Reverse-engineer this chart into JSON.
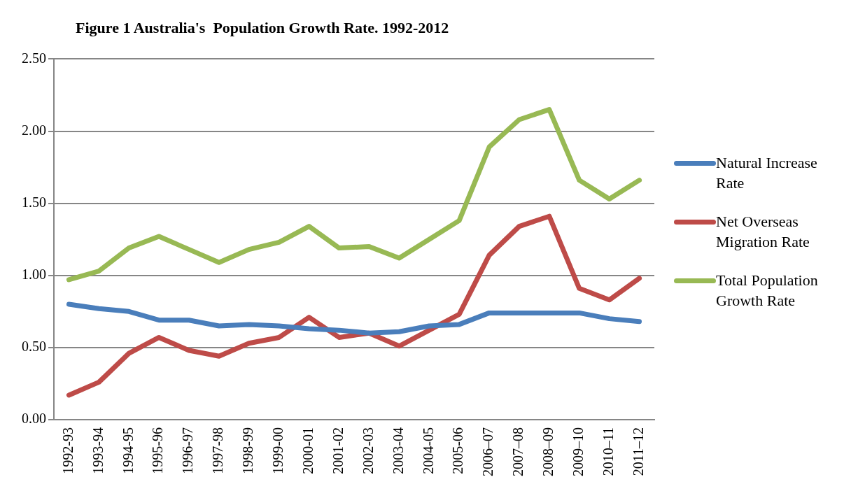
{
  "chart_data": {
    "type": "line",
    "title": "Figure 1 Australia's  Population Growth Rate. 1992-2012",
    "categories": [
      "1992-93",
      "1993-94",
      "1994-95",
      "1995-96",
      "1996-97",
      "1997-98",
      "1998-99",
      "1999-00",
      "2000-01",
      "2001-02",
      "2002-03",
      "2003-04",
      "2004-05",
      "2005-06",
      "2006–07",
      "2007–08",
      "2008–09",
      "2009–10",
      "2010–11",
      "2011–12"
    ],
    "series": [
      {
        "name": "Natural Increase Rate",
        "color": "#4a7ebb",
        "values": [
          0.8,
          0.77,
          0.75,
          0.69,
          0.69,
          0.65,
          0.66,
          0.65,
          0.63,
          0.62,
          0.6,
          0.61,
          0.65,
          0.66,
          0.74,
          0.74,
          0.74,
          0.74,
          0.7,
          0.68
        ]
      },
      {
        "name": "Net Overseas Migration Rate",
        "color": "#be4b48",
        "values": [
          0.17,
          0.26,
          0.46,
          0.57,
          0.48,
          0.44,
          0.53,
          0.57,
          0.71,
          0.57,
          0.6,
          0.51,
          0.62,
          0.73,
          1.14,
          1.34,
          1.41,
          0.91,
          0.83,
          0.98
        ]
      },
      {
        "name": "Total Population Growth Rate",
        "color": "#98b954",
        "values": [
          0.97,
          1.03,
          1.19,
          1.27,
          1.18,
          1.09,
          1.18,
          1.23,
          1.34,
          1.19,
          1.2,
          1.12,
          1.25,
          1.38,
          1.89,
          2.08,
          2.15,
          1.66,
          1.53,
          1.66
        ]
      }
    ],
    "ylim": [
      0,
      2.5
    ],
    "yticks": [
      {
        "value": 0,
        "label": "0.00"
      },
      {
        "value": 0.5,
        "label": "0.50"
      },
      {
        "value": 1,
        "label": "1.00"
      },
      {
        "value": 1.5,
        "label": "1.50"
      },
      {
        "value": 2,
        "label": "2.00"
      },
      {
        "value": 2.5,
        "label": "2.50"
      }
    ],
    "grid": "y",
    "legend": "right",
    "marker": "none",
    "line_style": "solid"
  }
}
